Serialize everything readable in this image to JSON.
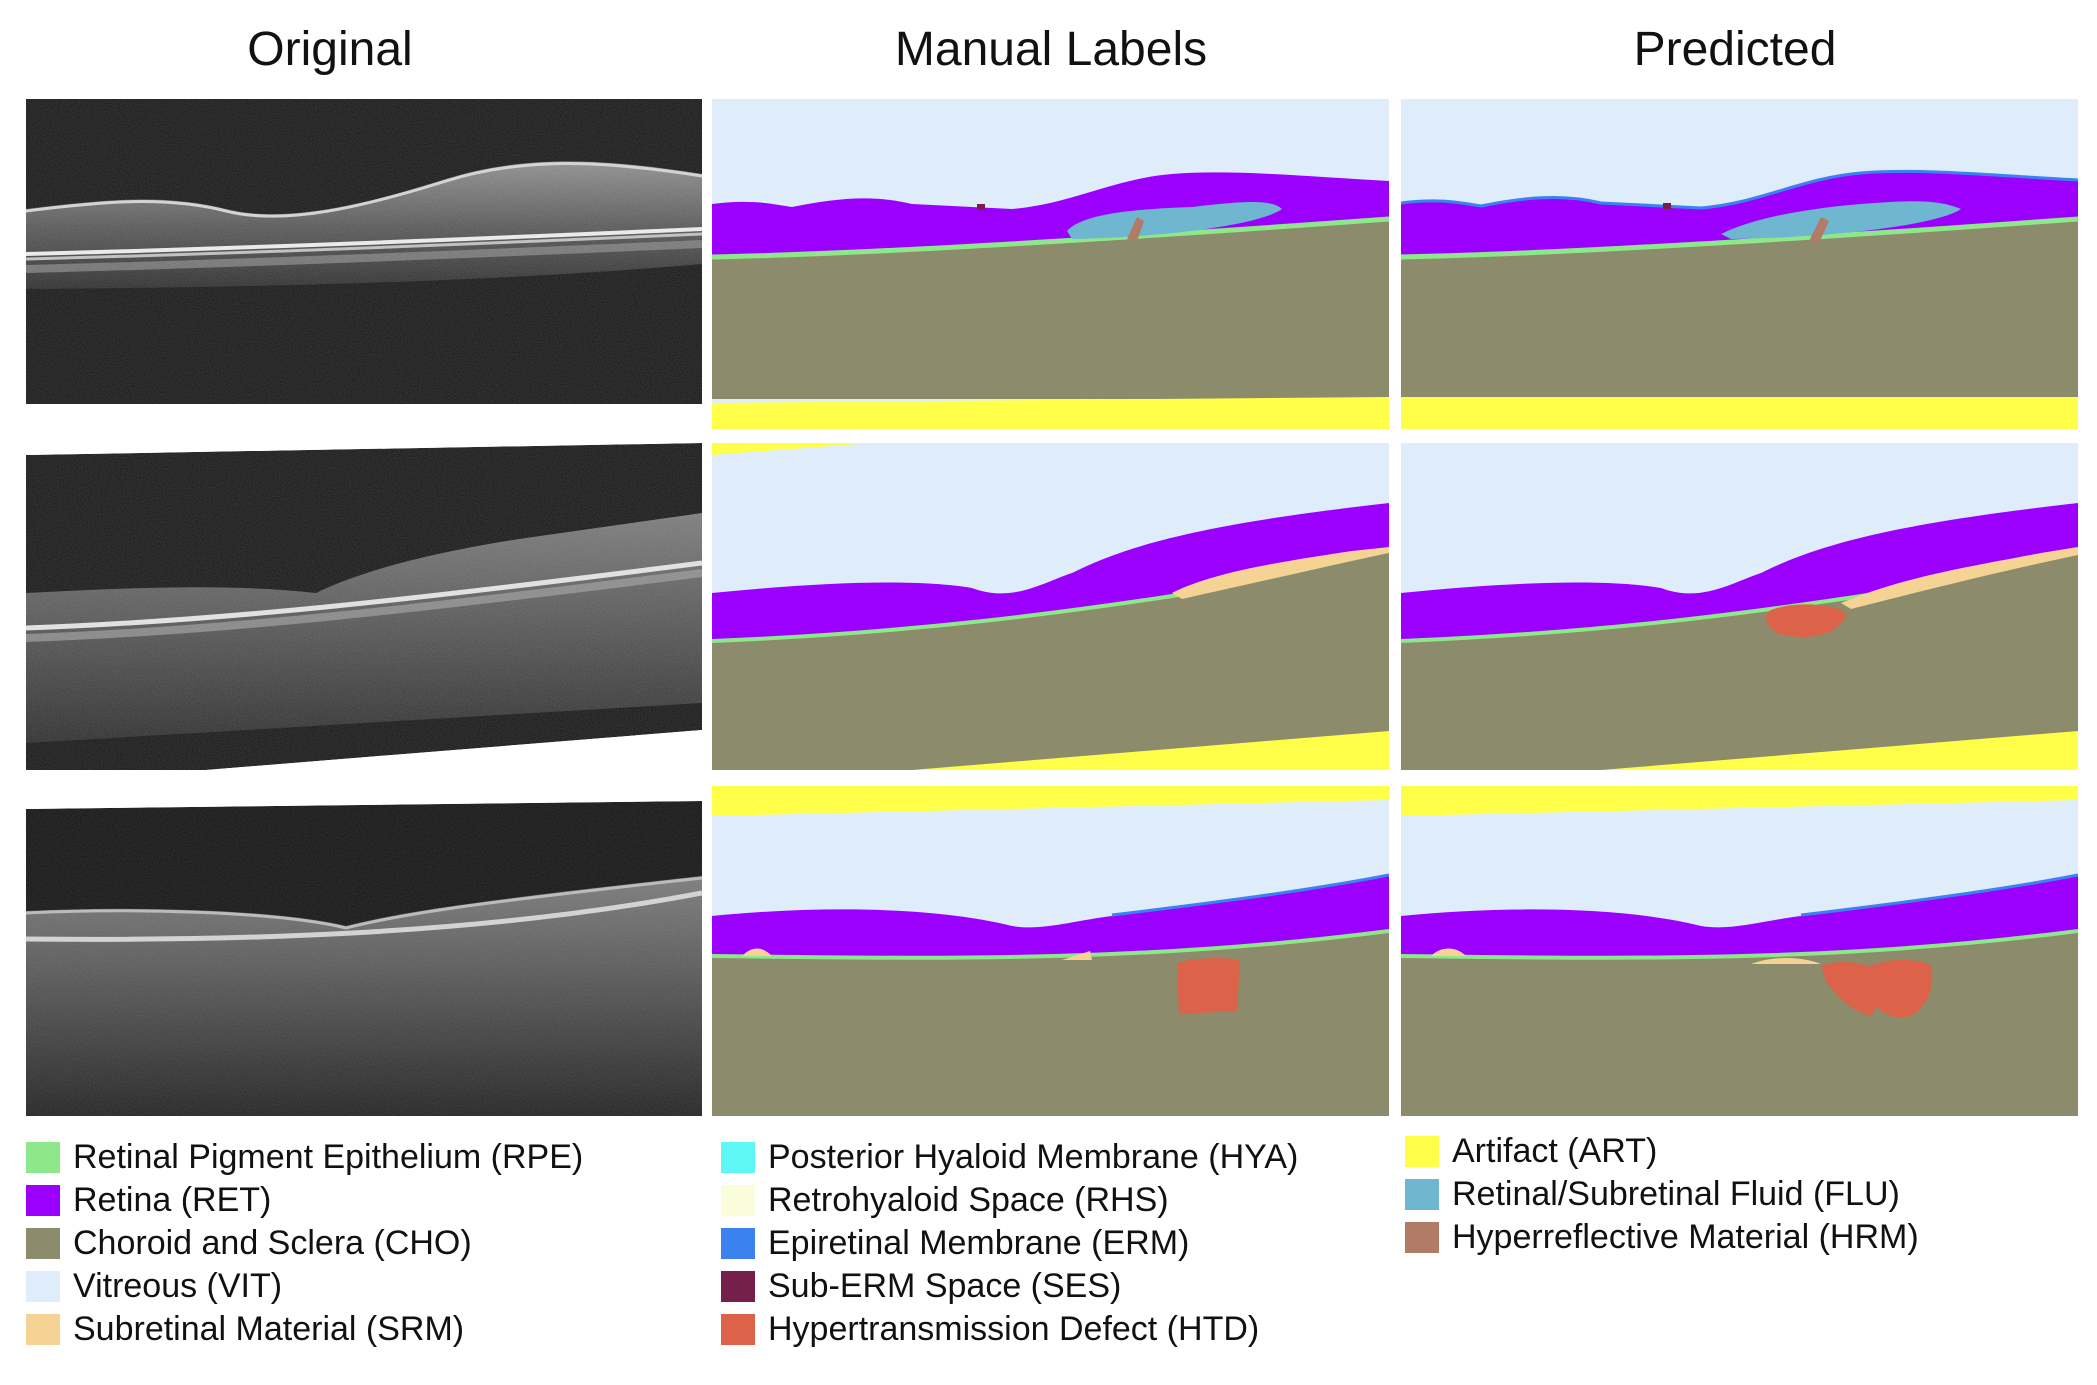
{
  "columns": {
    "original": "Original",
    "manual": "Manual Labels",
    "predicted": "Predicted"
  },
  "legend": {
    "col1": [
      {
        "label": "Retinal Pigment Epithelium (RPE)",
        "color": "#8ee88a"
      },
      {
        "label": "Retina (RET)",
        "color": "#9b00ff"
      },
      {
        "label": "Choroid and Sclera (CHO)",
        "color": "#8c8b6c"
      },
      {
        "label": "Vitreous (VIT)",
        "color": "#deedf9"
      },
      {
        "label": "Subretinal Material (SRM)",
        "color": "#f4d394"
      }
    ],
    "col2": [
      {
        "label": "Posterior Hyaloid Membrane (HYA)",
        "color": "#5ff6f6"
      },
      {
        "label": "Retrohyaloid Space (RHS)",
        "color": "#fafddc"
      },
      {
        "label": "Epiretinal Membrane (ERM)",
        "color": "#3b82f0"
      },
      {
        "label": "Sub-ERM Space (SES)",
        "color": "#74204a"
      },
      {
        "label": "Hypertransmission Defect (HTD)",
        "color": "#dc6249"
      }
    ],
    "col3": [
      {
        "label": "Artifact (ART)",
        "color": "#ffff4a"
      },
      {
        "label": "Retinal/Subretinal Fluid (FLU)",
        "color": "#6fb6d0"
      },
      {
        "label": "Hyperreflective Material (HRM)",
        "color": "#b27b66"
      }
    ]
  }
}
